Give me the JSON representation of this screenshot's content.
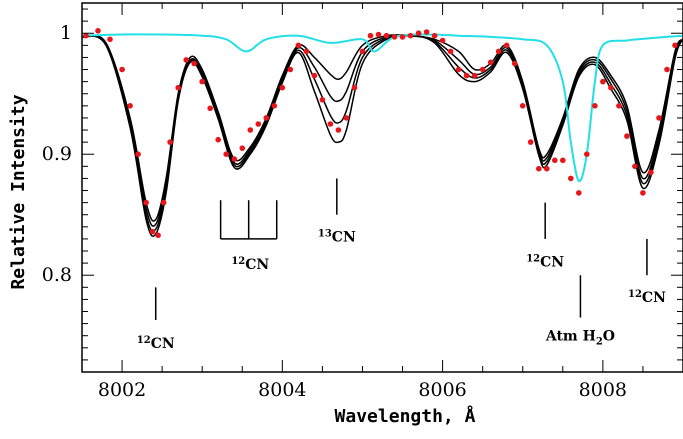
{
  "chart_data": {
    "type": "line",
    "xlabel": "Wavelength, Å",
    "ylabel": "Relative Intensity",
    "xlim": [
      8001.5,
      8009.0
    ],
    "ylim": [
      0.72,
      1.025
    ],
    "xticks": [
      8002,
      8004,
      8006,
      8008
    ],
    "yticks": [
      0.8,
      0.9,
      1.0
    ],
    "ytick_labels": [
      "0.8",
      "0.9",
      "1"
    ],
    "colors": {
      "observed": "#e8161a",
      "telluric": "#22e0e6",
      "model": "#000000"
    },
    "series": [
      {
        "kind": "model",
        "x": [
          8001.5,
          8001.8,
          8002.1,
          8002.3,
          8002.42,
          8002.55,
          8002.7,
          8002.85,
          8003.0,
          8003.2,
          8003.4,
          8003.6,
          8003.8,
          8004.0,
          8004.2,
          8004.4,
          8004.6,
          8004.7,
          8004.8,
          8005.0,
          8005.3,
          8005.6,
          8005.9,
          8006.2,
          8006.4,
          8006.6,
          8006.8,
          8007.0,
          8007.2,
          8007.3,
          8007.5,
          8007.7,
          8007.9,
          8008.1,
          8008.3,
          8008.5,
          8008.7,
          8008.9,
          8009.0
        ],
        "y": [
          0.997,
          0.992,
          0.93,
          0.86,
          0.846,
          0.88,
          0.95,
          0.98,
          0.97,
          0.935,
          0.896,
          0.906,
          0.93,
          0.965,
          0.99,
          0.98,
          0.966,
          0.962,
          0.968,
          0.99,
          0.998,
          0.998,
          0.995,
          0.985,
          0.97,
          0.975,
          0.99,
          0.96,
          0.905,
          0.9,
          0.93,
          0.97,
          0.98,
          0.965,
          0.94,
          0.885,
          0.92,
          0.985,
          0.995
        ]
      },
      {
        "kind": "model",
        "x": [
          8001.5,
          8001.8,
          8002.1,
          8002.3,
          8002.42,
          8002.55,
          8002.7,
          8002.85,
          8003.0,
          8003.2,
          8003.4,
          8003.6,
          8003.8,
          8004.0,
          8004.2,
          8004.4,
          8004.6,
          8004.7,
          8004.8,
          8005.0,
          8005.3,
          8005.6,
          8005.9,
          8006.2,
          8006.4,
          8006.6,
          8006.8,
          8007.0,
          8007.2,
          8007.3,
          8007.5,
          8007.7,
          8007.9,
          8008.1,
          8008.3,
          8008.5,
          8008.7,
          8008.9,
          8009.0
        ],
        "y": [
          0.997,
          0.991,
          0.928,
          0.855,
          0.842,
          0.876,
          0.948,
          0.978,
          0.968,
          0.933,
          0.893,
          0.904,
          0.928,
          0.963,
          0.988,
          0.972,
          0.948,
          0.944,
          0.952,
          0.985,
          0.997,
          0.998,
          0.994,
          0.978,
          0.966,
          0.972,
          0.988,
          0.958,
          0.903,
          0.897,
          0.928,
          0.968,
          0.978,
          0.962,
          0.936,
          0.88,
          0.916,
          0.983,
          0.995
        ]
      },
      {
        "kind": "model",
        "x": [
          8001.5,
          8001.8,
          8002.1,
          8002.3,
          8002.42,
          8002.55,
          8002.7,
          8002.85,
          8003.0,
          8003.2,
          8003.4,
          8003.6,
          8003.8,
          8004.0,
          8004.2,
          8004.4,
          8004.6,
          8004.7,
          8004.8,
          8005.0,
          8005.3,
          8005.6,
          8005.9,
          8006.2,
          8006.4,
          8006.6,
          8006.8,
          8007.0,
          8007.2,
          8007.3,
          8007.5,
          8007.7,
          8007.9,
          8008.1,
          8008.3,
          8008.5,
          8008.7,
          8008.9,
          8009.0
        ],
        "y": [
          0.997,
          0.99,
          0.925,
          0.85,
          0.838,
          0.872,
          0.946,
          0.977,
          0.966,
          0.931,
          0.891,
          0.902,
          0.926,
          0.961,
          0.986,
          0.962,
          0.932,
          0.926,
          0.936,
          0.98,
          0.996,
          0.998,
          0.993,
          0.972,
          0.963,
          0.97,
          0.986,
          0.956,
          0.901,
          0.894,
          0.926,
          0.966,
          0.976,
          0.958,
          0.932,
          0.876,
          0.912,
          0.981,
          0.995
        ]
      },
      {
        "kind": "model",
        "x": [
          8001.5,
          8001.8,
          8002.1,
          8002.3,
          8002.42,
          8002.55,
          8002.7,
          8002.85,
          8003.0,
          8003.2,
          8003.4,
          8003.6,
          8003.8,
          8004.0,
          8004.2,
          8004.4,
          8004.6,
          8004.7,
          8004.8,
          8005.0,
          8005.3,
          8005.6,
          8005.9,
          8006.2,
          8006.4,
          8006.6,
          8006.8,
          8007.0,
          8007.2,
          8007.3,
          8007.5,
          8007.7,
          8007.9,
          8008.1,
          8008.3,
          8008.5,
          8008.7,
          8008.9,
          8009.0
        ],
        "y": [
          0.997,
          0.99,
          0.922,
          0.846,
          0.834,
          0.868,
          0.944,
          0.976,
          0.964,
          0.929,
          0.889,
          0.9,
          0.924,
          0.959,
          0.984,
          0.952,
          0.916,
          0.91,
          0.92,
          0.975,
          0.995,
          0.998,
          0.992,
          0.966,
          0.96,
          0.968,
          0.984,
          0.954,
          0.899,
          0.891,
          0.924,
          0.964,
          0.974,
          0.954,
          0.928,
          0.872,
          0.908,
          0.979,
          0.995
        ]
      },
      {
        "kind": "telluric",
        "x": [
          8001.5,
          8002.0,
          8002.5,
          8003.0,
          8003.3,
          8003.55,
          8003.8,
          8004.2,
          8004.6,
          8005.0,
          8005.15,
          8005.4,
          8005.8,
          8006.2,
          8006.6,
          8007.0,
          8007.3,
          8007.5,
          8007.6,
          8007.7,
          8007.8,
          8007.9,
          8008.0,
          8008.3,
          8008.6,
          8009.0
        ],
        "y": [
          0.998,
          0.999,
          0.999,
          0.998,
          0.995,
          0.985,
          0.995,
          0.998,
          0.992,
          0.995,
          0.985,
          0.997,
          0.999,
          0.998,
          0.997,
          0.995,
          0.99,
          0.96,
          0.91,
          0.878,
          0.9,
          0.96,
          0.99,
          0.994,
          0.996,
          0.998
        ]
      },
      {
        "kind": "observed",
        "x": [
          8001.55,
          8001.7,
          8001.85,
          8002.0,
          8002.1,
          8002.2,
          8002.3,
          8002.38,
          8002.45,
          8002.52,
          8002.6,
          8002.7,
          8002.8,
          8002.9,
          8003.0,
          8003.1,
          8003.2,
          8003.3,
          8003.4,
          8003.5,
          8003.6,
          8003.7,
          8003.8,
          8003.9,
          8004.0,
          8004.1,
          8004.2,
          8004.3,
          8004.4,
          8004.5,
          8004.6,
          8004.7,
          8004.8,
          8004.9,
          8005.0,
          8005.1,
          8005.2,
          8005.3,
          8005.4,
          8005.5,
          8005.6,
          8005.7,
          8005.8,
          8005.9,
          8006.0,
          8006.1,
          8006.2,
          8006.3,
          8006.4,
          8006.5,
          8006.6,
          8006.7,
          8006.8,
          8006.9,
          8007.0,
          8007.1,
          8007.2,
          8007.3,
          8007.4,
          8007.5,
          8007.6,
          8007.7,
          8007.8,
          8007.9,
          8008.0,
          8008.1,
          8008.2,
          8008.3,
          8008.4,
          8008.5,
          8008.6,
          8008.7,
          8008.8,
          8008.9
        ],
        "y": [
          0.998,
          1.002,
          0.995,
          0.97,
          0.94,
          0.9,
          0.86,
          0.836,
          0.833,
          0.86,
          0.91,
          0.955,
          0.978,
          0.975,
          0.96,
          0.938,
          0.912,
          0.9,
          0.896,
          0.905,
          0.92,
          0.925,
          0.93,
          0.94,
          0.955,
          0.97,
          0.99,
          0.985,
          0.965,
          0.945,
          0.925,
          0.92,
          0.93,
          0.955,
          0.985,
          0.998,
          0.999,
          0.998,
          0.997,
          0.997,
          0.998,
          1.0,
          1.001,
          0.998,
          0.994,
          0.985,
          0.97,
          0.965,
          0.965,
          0.97,
          0.976,
          0.985,
          0.99,
          0.975,
          0.94,
          0.91,
          0.888,
          0.888,
          0.895,
          0.895,
          0.88,
          0.868,
          0.9,
          0.94,
          0.96,
          0.955,
          0.94,
          0.915,
          0.89,
          0.868,
          0.885,
          0.93,
          0.97,
          0.99
        ]
      }
    ],
    "annotations": [
      {
        "label_main": "CN",
        "label_sup": "12",
        "x": 8002.42,
        "line_y": [
          0.79,
          0.763
        ],
        "text_y": 0.74
      },
      {
        "label_main": "CN",
        "label_sup": "12",
        "x": 8003.6,
        "bracket_x": [
          8003.23,
          8003.58,
          8003.93
        ],
        "bracket_y": [
          0.862,
          0.83
        ],
        "text_y": 0.805
      },
      {
        "label_main": "CN",
        "label_sup": "13",
        "x": 8004.68,
        "line_y": [
          0.88,
          0.85
        ],
        "text_y": 0.828
      },
      {
        "label_main": "CN",
        "label_sup": "12",
        "x": 8007.28,
        "line_y": [
          0.86,
          0.83
        ],
        "text_y": 0.807
      },
      {
        "label_main": "Atm H",
        "label_sub": "2",
        "label_tail": "O",
        "x": 8007.72,
        "line_y": [
          0.8,
          0.765
        ],
        "text_y": 0.746
      },
      {
        "label_main": "CN",
        "label_sup": "12",
        "x": 8008.55,
        "line_y": [
          0.83,
          0.8
        ],
        "text_y": 0.778
      }
    ]
  }
}
